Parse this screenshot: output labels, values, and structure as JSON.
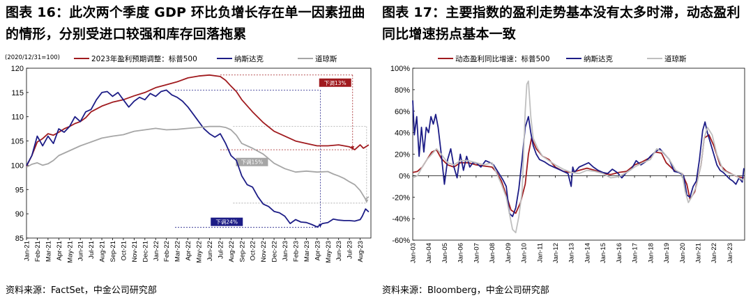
{
  "left": {
    "figure_title": "图表 16：此次两个季度 GDP 环比负增长存在单一因素扭曲的情形，分别受进口较强和库存回落拖累",
    "source": "资料来源：FactSet，中金公司研究部",
    "chart_data": {
      "type": "line",
      "unit_note": "(2020/12/31=100)",
      "ylim": [
        85,
        120
      ],
      "yticks": [
        85,
        90,
        95,
        100,
        105,
        110,
        115,
        120
      ],
      "x_range": [
        0,
        32
      ],
      "xtick_labels": [
        "Jan-21",
        "Feb-21",
        "Mar-21",
        "Apr-21",
        "May-21",
        "Jun-21",
        "Jul-21",
        "Aug-21",
        "Sep-21",
        "Oct-21",
        "Nov-21",
        "Dec-21",
        "Jan-22",
        "Feb-22",
        "Mar-22",
        "Apr-22",
        "May-22",
        "Jun-22",
        "Jul-22",
        "Aug-22",
        "Sep-22",
        "Oct-22",
        "Nov-22",
        "Dec-22",
        "Jan-23",
        "Feb-23",
        "Mar-23",
        "Apr-23",
        "May-23",
        "Jun-23",
        "Jul-23",
        "Aug-23"
      ],
      "legend_position": "top",
      "series": [
        {
          "name": "2023年盈利预期调整：标普500",
          "color": "#A01A1E",
          "x": [
            0,
            0.5,
            1.0,
            1.5,
            2.0,
            2.5,
            3.0,
            3.5,
            4.0,
            4.5,
            5.0,
            5.5,
            6.0,
            7.0,
            8.0,
            9.0,
            10.0,
            11.0,
            12.0,
            13.0,
            14.0,
            15.0,
            16.0,
            17.0,
            18.0,
            18.5,
            19.0,
            19.5,
            20.0,
            21.0,
            22.0,
            23.0,
            24.0,
            25.0,
            26.0,
            27.0,
            28.0,
            29.0,
            30.0,
            30.5,
            31.0,
            31.3,
            31.8
          ],
          "values": [
            99.8,
            102.0,
            104.8,
            105.5,
            106.5,
            106.2,
            106.8,
            107.5,
            108.0,
            108.6,
            109.0,
            109.8,
            111.0,
            112.2,
            113.0,
            113.5,
            114.3,
            115.0,
            116.0,
            116.6,
            117.2,
            118.0,
            118.4,
            118.6,
            118.3,
            117.5,
            116.3,
            115.2,
            113.5,
            111.0,
            108.8,
            107.0,
            106.0,
            105.0,
            104.5,
            104.0,
            104.0,
            104.2,
            103.8,
            103.2,
            104.2,
            103.5,
            104.2
          ]
        },
        {
          "name": "纳斯达克",
          "color": "#1C1C86",
          "x": [
            0,
            0.5,
            1.0,
            1.5,
            2.0,
            2.5,
            3.0,
            3.5,
            4.0,
            4.5,
            5.0,
            5.5,
            6.0,
            6.5,
            7.0,
            7.5,
            8.0,
            8.5,
            9.0,
            9.5,
            10.0,
            10.5,
            11.0,
            11.5,
            12.0,
            12.5,
            13.0,
            13.5,
            14.0,
            14.5,
            15.0,
            15.5,
            16.0,
            16.5,
            17.0,
            17.5,
            18.0,
            18.5,
            19.0,
            19.5,
            20.0,
            20.5,
            21.0,
            21.5,
            22.0,
            22.5,
            23.0,
            23.5,
            24.0,
            24.5,
            25.0,
            25.5,
            26.0,
            26.5,
            27.0,
            27.5,
            28.0,
            28.5,
            29.0,
            29.5,
            30.0,
            30.5,
            31.0,
            31.2,
            31.5,
            31.8
          ],
          "values": [
            99.9,
            102.0,
            106.0,
            104.0,
            106.0,
            104.5,
            107.5,
            106.8,
            108.0,
            110.0,
            109.0,
            111.0,
            111.5,
            113.5,
            115.0,
            115.2,
            114.2,
            115.0,
            113.5,
            112.0,
            113.2,
            114.0,
            113.5,
            114.8,
            114.2,
            115.2,
            115.5,
            114.5,
            114.0,
            113.2,
            112.0,
            110.5,
            109.0,
            107.5,
            106.5,
            105.8,
            106.5,
            104.5,
            102.0,
            101.0,
            97.8,
            96.0,
            95.5,
            93.5,
            92.0,
            91.5,
            90.5,
            90.2,
            89.5,
            88.0,
            88.8,
            88.3,
            88.2,
            87.8,
            87.3,
            88.0,
            88.2,
            88.9,
            88.7,
            88.6,
            88.6,
            88.5,
            88.8,
            89.5,
            91.0,
            90.4
          ]
        },
        {
          "name": "道琼斯",
          "color": "#A6A6A6",
          "x": [
            0,
            0.5,
            1.0,
            1.5,
            2.0,
            2.5,
            3.0,
            4.0,
            5.0,
            6.0,
            7.0,
            8.0,
            9.0,
            10.0,
            11.0,
            12.0,
            13.0,
            14.0,
            15.0,
            16.0,
            17.0,
            18.0,
            18.5,
            19.0,
            19.5,
            20.0,
            21.0,
            22.0,
            23.0,
            24.0,
            25.0,
            26.0,
            27.0,
            28.0,
            28.5,
            29.0,
            29.5,
            30.0,
            30.5,
            31.0,
            31.5,
            31.8
          ],
          "values": [
            99.6,
            100.2,
            100.5,
            100.0,
            100.3,
            101.0,
            102.0,
            103.0,
            104.0,
            104.8,
            105.6,
            106.0,
            106.3,
            107.0,
            107.3,
            107.6,
            107.3,
            107.4,
            107.6,
            107.8,
            108.0,
            108.0,
            107.8,
            107.3,
            106.2,
            104.5,
            103.5,
            102.3,
            100.4,
            99.3,
            98.6,
            98.8,
            98.6,
            98.7,
            98.2,
            97.8,
            97.3,
            96.6,
            96.0,
            94.8,
            93.0,
            93.5
          ]
        }
      ],
      "annotations": [
        {
          "text": "下调13%",
          "color": "#A01A1E",
          "from": [
            18,
            118.6
          ],
          "to": [
            30.3,
            103.2
          ]
        },
        {
          "text": "下调15%",
          "color": "#A6A6A6",
          "from": [
            19.2,
            108.0
          ],
          "to": [
            31.6,
            92.2
          ]
        },
        {
          "text": "下调24%",
          "color": "#1C1C86",
          "from": [
            13.8,
            115.5
          ],
          "to": [
            27.3,
            87.2
          ]
        }
      ]
    }
  },
  "right": {
    "figure_title": "图表 17：主要指数的盈利走势基本没有太多时滞，动态盈利同比增速拐点基本一致",
    "source": "资料来源：Bloomberg，中金公司研究部",
    "chart_data": {
      "type": "line",
      "ylim": [
        -60,
        100
      ],
      "yticks": [
        -60,
        -40,
        -20,
        0,
        20,
        40,
        60,
        80,
        100
      ],
      "ytick_labels": [
        "-60%",
        "-40%",
        "-20%",
        "0%",
        "20%",
        "40%",
        "60%",
        "80%",
        "100%"
      ],
      "x_range": [
        2003.0,
        2023.95
      ],
      "xtick_labels": [
        "Jan-03",
        "Jan-04",
        "Jan-05",
        "Jan-06",
        "Jan-07",
        "Jan-08",
        "Jan-09",
        "Jan-10",
        "Jan-11",
        "Jan-12",
        "Jan-13",
        "Jan-14",
        "Jan-15",
        "Jan-16",
        "Jan-17",
        "Jan-18",
        "Jan-19",
        "Jan-20",
        "Jan-21",
        "Jan-22",
        "Jan-23"
      ],
      "legend_position": "top",
      "series": [
        {
          "name": "动态盈利同比增速：标普500",
          "color": "#A01A1E",
          "x": [
            2003.0,
            2003.3,
            2003.6,
            2003.9,
            2004.2,
            2004.5,
            2004.8,
            2005.2,
            2005.6,
            2006.0,
            2006.5,
            2007.0,
            2007.5,
            2008.0,
            2008.3,
            2008.6,
            2008.9,
            2009.2,
            2009.5,
            2009.8,
            2010.1,
            2010.3,
            2010.5,
            2010.8,
            2011.2,
            2011.6,
            2012.0,
            2012.5,
            2013.0,
            2013.5,
            2014.0,
            2014.5,
            2015.0,
            2015.5,
            2016.0,
            2016.5,
            2017.0,
            2017.5,
            2018.0,
            2018.3,
            2018.7,
            2019.0,
            2019.5,
            2020.0,
            2020.3,
            2020.5,
            2020.8,
            2021.2,
            2021.4,
            2021.7,
            2022.0,
            2022.4,
            2022.8,
            2023.2,
            2023.5,
            2023.9
          ],
          "values": [
            3,
            4,
            8,
            15,
            22,
            24,
            16,
            10,
            8,
            12,
            12,
            10,
            9,
            8,
            3,
            -5,
            -18,
            -32,
            -35,
            -25,
            -8,
            20,
            35,
            25,
            18,
            15,
            8,
            4,
            3,
            5,
            7,
            5,
            2,
            1,
            3,
            4,
            10,
            13,
            17,
            22,
            21,
            12,
            5,
            2,
            -8,
            -22,
            -15,
            10,
            35,
            38,
            28,
            10,
            4,
            1,
            -1,
            -2
          ]
        },
        {
          "name": "纳斯达克",
          "color": "#1C1C86",
          "x": [
            2003.0,
            2003.1,
            2003.25,
            2003.4,
            2003.55,
            2003.7,
            2003.85,
            2004.0,
            2004.15,
            2004.3,
            2004.45,
            2004.6,
            2004.8,
            2005.0,
            2005.2,
            2005.4,
            2005.6,
            2005.8,
            2006.0,
            2006.2,
            2006.4,
            2006.6,
            2006.8,
            2007.0,
            2007.3,
            2007.6,
            2007.9,
            2008.1,
            2008.4,
            2008.7,
            2008.9,
            2009.1,
            2009.3,
            2009.5,
            2009.7,
            2009.9,
            2010.1,
            2010.3,
            2010.45,
            2010.6,
            2010.8,
            2011.0,
            2011.3,
            2011.6,
            2011.9,
            2012.2,
            2012.5,
            2012.8,
            2013.0,
            2013.1,
            2013.2,
            2013.5,
            2013.8,
            2014.1,
            2014.4,
            2014.7,
            2015.0,
            2015.3,
            2015.6,
            2015.9,
            2016.2,
            2016.5,
            2016.8,
            2017.1,
            2017.4,
            2017.7,
            2018.0,
            2018.3,
            2018.6,
            2018.9,
            2019.2,
            2019.5,
            2019.8,
            2020.1,
            2020.3,
            2020.5,
            2020.7,
            2020.9,
            2021.1,
            2021.3,
            2021.45,
            2021.6,
            2021.8,
            2022.0,
            2022.2,
            2022.4,
            2022.6,
            2022.8,
            2023.0,
            2023.2,
            2023.4,
            2023.6,
            2023.8,
            2023.9
          ],
          "values": [
            70,
            38,
            55,
            18,
            45,
            22,
            45,
            40,
            55,
            48,
            57,
            45,
            20,
            -8,
            15,
            25,
            8,
            -2,
            20,
            5,
            18,
            8,
            12,
            12,
            8,
            14,
            12,
            10,
            3,
            -4,
            -10,
            -35,
            -38,
            -30,
            -12,
            15,
            45,
            55,
            40,
            28,
            20,
            15,
            13,
            10,
            8,
            6,
            4,
            2,
            -10,
            8,
            3,
            8,
            10,
            12,
            8,
            5,
            3,
            2,
            6,
            3,
            -2,
            3,
            6,
            14,
            10,
            13,
            18,
            22,
            25,
            20,
            15,
            4,
            3,
            0,
            -18,
            -20,
            -10,
            -5,
            15,
            42,
            50,
            40,
            30,
            20,
            10,
            5,
            3,
            0,
            -3,
            -5,
            -8,
            -2,
            -6,
            7
          ]
        },
        {
          "name": "道琼斯",
          "color": "#BFBFBF",
          "x": [
            2003.0,
            2003.3,
            2003.6,
            2003.9,
            2004.2,
            2004.5,
            2004.8,
            2005.2,
            2005.6,
            2006.0,
            2006.5,
            2007.0,
            2007.5,
            2008.0,
            2008.3,
            2008.6,
            2008.9,
            2009.1,
            2009.3,
            2009.5,
            2009.7,
            2009.9,
            2010.1,
            2010.2,
            2010.3,
            2010.45,
            2010.6,
            2010.9,
            2011.2,
            2011.6,
            2012.0,
            2012.5,
            2013.0,
            2013.5,
            2014.0,
            2014.5,
            2015.0,
            2015.5,
            2016.0,
            2016.5,
            2017.0,
            2017.5,
            2018.0,
            2018.4,
            2018.8,
            2019.2,
            2019.6,
            2020.0,
            2020.2,
            2020.4,
            2020.6,
            2020.9,
            2021.2,
            2021.4,
            2021.6,
            2021.9,
            2022.2,
            2022.6,
            2023.0,
            2023.4,
            2023.8,
            2023.9
          ],
          "values": [
            -2,
            0,
            8,
            15,
            20,
            25,
            20,
            12,
            10,
            14,
            14,
            12,
            10,
            12,
            2,
            -8,
            -20,
            -35,
            -50,
            -53,
            -38,
            -15,
            60,
            85,
            88,
            55,
            35,
            25,
            18,
            14,
            10,
            6,
            3,
            2,
            5,
            4,
            2,
            -2,
            -1,
            3,
            8,
            12,
            15,
            25,
            22,
            15,
            5,
            2,
            -15,
            -25,
            -20,
            -10,
            10,
            35,
            45,
            38,
            20,
            5,
            2,
            0,
            -4,
            -3
          ]
        }
      ]
    }
  }
}
